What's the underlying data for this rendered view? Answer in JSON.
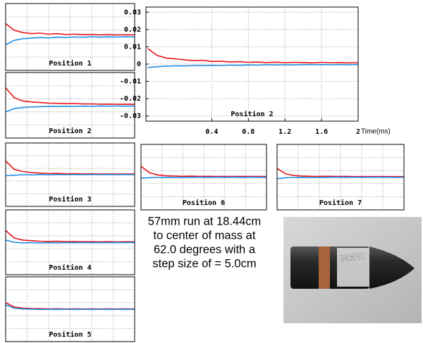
{
  "chart_data": [
    {
      "type": "line",
      "title": "Position 1",
      "x": [
        0,
        0.1,
        0.2,
        0.3,
        0.4,
        0.5,
        0.6,
        0.7,
        0.8,
        0.9,
        1,
        1.1,
        1.2,
        1.3,
        1.4,
        1.5
      ],
      "xlim": [
        0,
        1.5
      ],
      "ylim": [
        -0.03,
        0.03
      ],
      "series": [
        {
          "color": "#e8141b",
          "values": [
            0.012,
            0.006,
            0.004,
            0.003,
            0.0035,
            0.0025,
            0.003,
            0.0022,
            0.0025,
            0.002,
            0.0023,
            0.0019,
            0.0021,
            0.0018,
            0.002,
            0.0019
          ]
        },
        {
          "color": "#1e8ee8",
          "values": [
            -0.007,
            -0.003,
            -0.0015,
            -0.001,
            -0.0005,
            -0.0008,
            -0.0002,
            -0.0005,
            0,
            -0.0003,
            0.0002,
            -0.0001,
            0.0001,
            0,
            0.0002,
            0
          ]
        }
      ]
    },
    {
      "type": "line",
      "title": "Position 2",
      "x": [
        0,
        0.1,
        0.2,
        0.3,
        0.4,
        0.5,
        0.6,
        0.7,
        0.8,
        0.9,
        1,
        1.1,
        1.2,
        1.3,
        1.4,
        1.5
      ],
      "xlim": [
        0,
        1.5
      ],
      "ylim": [
        -0.03,
        0.03
      ],
      "series": [
        {
          "color": "#e8141b",
          "values": [
            0.016,
            0.007,
            0.004,
            0.003,
            0.0025,
            0.002,
            0.0018,
            0.0015,
            0.0016,
            0.0012,
            0.0013,
            0.001,
            0.0011,
            0.0009,
            0.001,
            0.0009
          ]
        },
        {
          "color": "#1e8ee8",
          "values": [
            -0.006,
            -0.003,
            -0.002,
            -0.0015,
            -0.0012,
            -0.001,
            -0.0011,
            -0.0009,
            -0.001,
            -0.0008,
            -0.0009,
            -0.0007,
            -0.0008,
            -0.0007,
            -0.0008,
            -0.0007
          ]
        }
      ]
    },
    {
      "type": "line",
      "title": "Position 3",
      "x": [
        0,
        0.1,
        0.2,
        0.3,
        0.4,
        0.5,
        0.6,
        0.7,
        0.8,
        0.9,
        1,
        1.1,
        1.2,
        1.3,
        1.4,
        1.5
      ],
      "xlim": [
        0,
        1.5
      ],
      "ylim": [
        -0.03,
        0.03
      ],
      "series": [
        {
          "color": "#e8141b",
          "values": [
            0.013,
            0.005,
            0.003,
            0.002,
            0.0015,
            0.001,
            0.0012,
            0.0008,
            0.001,
            0.0007,
            0.0008,
            0.0006,
            0.0007,
            0.0006,
            0.0007,
            0.0006
          ]
        },
        {
          "color": "#1e8ee8",
          "values": [
            -0.001,
            -0.0005,
            0,
            -0.0002,
            0.0001,
            -0.0001,
            0.0001,
            0,
            0.0001,
            0,
            0.0001,
            0,
            0.0001,
            0,
            0.0001,
            0
          ]
        }
      ]
    },
    {
      "type": "line",
      "title": "Position 4",
      "x": [
        0,
        0.1,
        0.2,
        0.3,
        0.4,
        0.5,
        0.6,
        0.7,
        0.8,
        0.9,
        1,
        1.1,
        1.2,
        1.3,
        1.4,
        1.5
      ],
      "xlim": [
        0,
        1.5
      ],
      "ylim": [
        -0.03,
        0.03
      ],
      "series": [
        {
          "color": "#e8141b",
          "values": [
            0.011,
            0.004,
            0.002,
            0.0015,
            0.001,
            0.0008,
            0.0009,
            0.0006,
            0.0007,
            0.0005,
            0.0006,
            0.0004,
            0.0005,
            0.0004,
            0.0005,
            0.0004
          ]
        },
        {
          "color": "#1e8ee8",
          "values": [
            0.002,
            0,
            -0.0005,
            -0.0003,
            -0.0006,
            -0.0004,
            -0.0005,
            -0.0003,
            -0.0004,
            -0.0003,
            -0.0004,
            -0.0003,
            -0.0003,
            -0.0002,
            -0.0003,
            -0.0002
          ]
        }
      ]
    },
    {
      "type": "line",
      "title": "Position 5",
      "x": [
        0,
        0.1,
        0.2,
        0.3,
        0.4,
        0.5,
        0.6,
        0.7,
        0.8,
        0.9,
        1,
        1.1,
        1.2,
        1.3,
        1.4,
        1.5
      ],
      "xlim": [
        0,
        1.5
      ],
      "ylim": [
        -0.03,
        0.03
      ],
      "series": [
        {
          "color": "#e8141b",
          "values": [
            0.006,
            0.002,
            0.001,
            0.0006,
            0.0005,
            0.0003,
            0.0004,
            0.0002,
            0.0003,
            0.0002,
            0.0003,
            0.0002,
            0.0003,
            0.0002,
            0.0003,
            0.0002
          ]
        },
        {
          "color": "#1e8ee8",
          "values": [
            0.004,
            0.001,
            0.0002,
            0,
            -0.0002,
            -0.0001,
            -0.0002,
            -0.0001,
            -0.0002,
            -0.0001,
            -0.0002,
            -0.0001,
            -0.0002,
            -0.0001,
            -0.0002,
            -0.0001
          ]
        }
      ]
    },
    {
      "type": "line",
      "title": "Position 2",
      "x_label": "Time(ms)",
      "x": [
        -0.3,
        -0.2,
        -0.1,
        0,
        0.1,
        0.2,
        0.3,
        0.4,
        0.5,
        0.6,
        0.7,
        0.8,
        0.9,
        1,
        1.1,
        1.2,
        1.3,
        1.4,
        1.5,
        1.6,
        1.7,
        1.8,
        1.9,
        2
      ],
      "xlim": [
        -0.32,
        2
      ],
      "ylim": [
        -0.033,
        0.033
      ],
      "xticks": [
        0.4,
        0.8,
        1.2,
        1.6,
        2
      ],
      "yticks": [
        0.03,
        0.02,
        0.01,
        0,
        -0.01,
        -0.02,
        -0.03
      ],
      "grid": true,
      "series": [
        {
          "color": "#e8141b",
          "values": [
            0.009,
            0.005,
            0.0035,
            0.003,
            0.0025,
            0.002,
            0.0022,
            0.0015,
            0.0017,
            0.0012,
            0.0014,
            0.001,
            0.0012,
            0.0009,
            0.0011,
            0.0008,
            0.001,
            0.0009,
            0.0007,
            0.001,
            0.0008,
            0.0009,
            0.0007,
            0.0008
          ]
        },
        {
          "color": "#1e8ee8",
          "values": [
            -0.002,
            -0.0015,
            -0.0012,
            -0.001,
            -0.0011,
            -0.0008,
            -0.0009,
            -0.0007,
            -0.0008,
            -0.0006,
            -0.0007,
            -0.0005,
            -0.0006,
            -0.0004,
            -0.0005,
            -0.0004,
            -0.0005,
            -0.0003,
            -0.0004,
            -0.0003,
            -0.0004,
            -0.0003,
            -0.0004,
            -0.0003
          ]
        }
      ]
    },
    {
      "type": "line",
      "title": "Position 6",
      "x": [
        0,
        0.1,
        0.2,
        0.3,
        0.4,
        0.5,
        0.6,
        0.7,
        0.8,
        0.9,
        1,
        1.1,
        1.2,
        1.3,
        1.4,
        1.5
      ],
      "xlim": [
        0,
        1.5
      ],
      "ylim": [
        -0.03,
        0.03
      ],
      "series": [
        {
          "color": "#e8141b",
          "values": [
            0.01,
            0.004,
            0.002,
            0.0012,
            0.001,
            0.0008,
            0.0009,
            0.0007,
            0.0008,
            0.0006,
            0.0007,
            0.0006,
            0.0007,
            0.0006,
            0.0006,
            0.0006
          ]
        },
        {
          "color": "#1e8ee8",
          "values": [
            -0.001,
            -0.0005,
            -0.0003,
            -0.0002,
            -0.0003,
            -0.0001,
            -0.0002,
            -0.0001,
            -0.0002,
            -0.0001,
            -0.0002,
            -0.0001,
            -0.0002,
            -0.0001,
            -0.0002,
            -0.0001
          ]
        }
      ]
    },
    {
      "type": "line",
      "title": "Position 7",
      "x": [
        0,
        0.1,
        0.2,
        0.3,
        0.4,
        0.5,
        0.6,
        0.7,
        0.8,
        0.9,
        1,
        1.1,
        1.2,
        1.3,
        1.4,
        1.5
      ],
      "xlim": [
        0,
        1.5
      ],
      "ylim": [
        -0.03,
        0.03
      ],
      "series": [
        {
          "color": "#e8141b",
          "values": [
            0.008,
            0.003,
            0.0015,
            0.001,
            0.0008,
            0.0007,
            0.0008,
            0.0006,
            0.0007,
            0.0005,
            0.0006,
            0.0005,
            0.0006,
            0.0005,
            0.0005,
            0.0005
          ]
        },
        {
          "color": "#1e8ee8",
          "values": [
            -0.0015,
            -0.0006,
            -0.0003,
            -0.0002,
            -0.0003,
            -0.0002,
            -0.0002,
            -0.0001,
            -0.0002,
            -0.0001,
            -0.0002,
            -0.0001,
            -0.0001,
            -0.0001,
            -0.0002,
            -0.0001
          ]
        }
      ]
    }
  ],
  "caption": [
    "57mm run at 18.44cm",
    "to center of mass at",
    "62.0 degrees with a",
    "step size of = 5.0cm"
  ],
  "photo": {
    "label": "INERT"
  }
}
